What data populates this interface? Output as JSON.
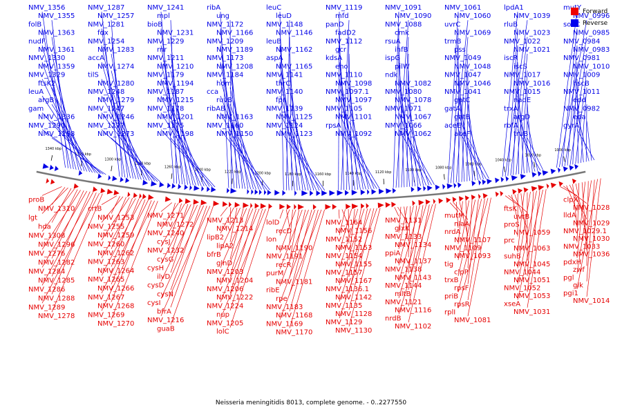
{
  "colors": {
    "forward": "#e60000",
    "reverse": "#0000e6",
    "backbone": "#7a7a7a",
    "tick": "#000000"
  },
  "legend": [
    {
      "label": "Forward",
      "color": "#ee0000"
    },
    {
      "label": "Reverse",
      "color": "#0000ee"
    }
  ],
  "caption": "Neisseria meningitidis 8013, complete genome. - 0..2277550",
  "scale": {
    "unit": "kbp",
    "ticks": [
      "1340 kbp",
      "1320 kbp",
      "1300 kbp",
      "1280 kbp",
      "1260 kbp",
      "1240 kbp",
      "1220 kbp",
      "1200 kbp",
      "1180 kbp",
      "1160 kbp",
      "1140 kbp",
      "1120 kbp",
      "1100 kbp",
      "1080 kbp",
      "1060 kbp",
      "1040 kbp",
      "1020 kbp",
      "1000 kbp"
    ]
  },
  "reverse_labels": [
    "NMV_1356",
    "NMV_1355",
    "folB",
    "NMV_1363",
    "nudF",
    "NMV_1361",
    "NMV_1330",
    "NMV_1359",
    "NMV_1329",
    "ftsK2",
    "leuA",
    "argB",
    "gam",
    "NMV_1336",
    "NMV_1290",
    "NMV_1258",
    "NMV_1287",
    "NMV_1257",
    "NMV_1281",
    "fdx",
    "NMV_1254",
    "NMV_1283",
    "accA",
    "NMV_1274",
    "tilS",
    "NMV_1280",
    "NMV_1248",
    "NMV_1279",
    "NMV_1247",
    "NMV_1246",
    "NMV_1277",
    "NMV_1273",
    "NMV_1241",
    "mpl",
    "bioB",
    "NMV_1231",
    "NMV_1229",
    "rnr",
    "NMV_1211",
    "NMV_1210",
    "NMV_1179",
    "NMV_1194",
    "NMV_1187",
    "NMV_1215",
    "NMV_1178",
    "NMV_1201",
    "NMV_1175",
    "NMV_1198",
    "ribA",
    "ung",
    "NMV_1172",
    "NMV_1166",
    "NMV_1209",
    "NMV_1189",
    "NMV_1173",
    "NMV_1208",
    "NMV_1184",
    "hom",
    "cca",
    "ruvB",
    "ribAB",
    "NMV_1163",
    "NMV_1160",
    "NMV_1150",
    "leuC",
    "leuD",
    "NMV_1148",
    "NMV_1146",
    "leuB",
    "NMV_1162",
    "aspA",
    "NMV_1165",
    "NMV_1141",
    "thrC",
    "NMV_1140",
    "fpr",
    "NMV_1139",
    "NMV_1125",
    "NMV_1124",
    "NMV_1123",
    "NMV_1119",
    "mfd",
    "panD",
    "fadD2",
    "NMV_1112",
    "gcr",
    "kdsA",
    "eno",
    "NMV_1110",
    "NMV_1098",
    "NMV_1097.1",
    "NMV_1097",
    "NMV_1105",
    "NMV_1101",
    "rpsA",
    "NMV_1092",
    "NMV_1091",
    "NMV_1090",
    "NMV_1088",
    "cmk",
    "rsuA",
    "ihfB",
    "ispG",
    "pilW",
    "ndk",
    "NMV_1082",
    "NMV_1080",
    "NMV_1078",
    "NMV_1071",
    "NMV_1067",
    "NMV_1066",
    "NMV_1062",
    "NMV_1061",
    "NMV_1060",
    "uvrC",
    "NMV_1069",
    "trmB",
    "pss",
    "NMV_1049",
    "NMV_1048",
    "NMV_1047",
    "NMV_1046",
    "NMV_1041",
    "gatC",
    "gatA",
    "gatB",
    "aceE",
    "aceF",
    "lpdA1",
    "NMV_1039",
    "rluB",
    "NMV_1023",
    "NMV_1022",
    "NMV_1021",
    "iscR",
    "iscS",
    "NMV_1017",
    "NMV_1016",
    "NMV_1015",
    "nadE",
    "trxA",
    "argD",
    "rbfA",
    "truB",
    "mutY",
    "NMV_0996",
    "sodC",
    "NMV_0985",
    "NMV_0984",
    "NMV_0983",
    "NMV_0981",
    "NMV_1010",
    "NMV_1009",
    "hscB",
    "NMV_1011",
    "edd",
    "NMV_0982",
    "eda",
    "gyrA"
  ],
  "forward_labels": [
    "proB",
    "NMV_1310",
    "lgt",
    "hda",
    "NMV_1308",
    "NMV_1296",
    "NMV_1276",
    "NMV_1282",
    "NMV_1284",
    "NMV_1285",
    "NMV_1286",
    "NMV_1288",
    "NMV_1289",
    "NMV_1278",
    "crtB",
    "NMV_1253",
    "NMV_1255",
    "NMV_1259",
    "NMV_1260",
    "NMV_1262",
    "NMV_1263",
    "NMV_1264",
    "NMV_1265",
    "NMV_1266",
    "NMV_1267",
    "NMV_1268",
    "NMV_1269",
    "NMV_1270",
    "NMV_1271",
    "NMV_1272",
    "NMV_1240",
    "cysJ",
    "NMV_1232",
    "cysG",
    "cysH",
    "ilvD",
    "cysD",
    "cysN",
    "cysI",
    "bfrA",
    "NMV_1216",
    "guaB",
    "NMV_1213",
    "NMV_1214",
    "lipB2",
    "lipA2",
    "bfrB",
    "glnD",
    "NMV_1203",
    "NMV_1204",
    "NMV_1206",
    "NMV_1222",
    "NMV_1224",
    "nup",
    "NMV_1205",
    "lolC",
    "lolD",
    "recD",
    "lon",
    "NMV_1190",
    "NMV_1191",
    "recR",
    "purM",
    "NMV_1181",
    "ribE",
    "rpe",
    "NMV_1183",
    "NMV_1168",
    "NMV_1169",
    "NMV_1170",
    "NMV_1164",
    "NMV_1156",
    "NMV_1152",
    "NMV_1153",
    "NMV_1154",
    "NMV_1155",
    "NMV_1157",
    "NMV_1167",
    "NMV_1136.1",
    "NMV_1142",
    "NMV_1135",
    "NMV_1128",
    "NMV_1129",
    "NMV_1130",
    "NMV_1131",
    "glxK",
    "NMV_1133",
    "NMV_1134",
    "ppiA",
    "NMV_1137",
    "NMV_1138",
    "NMV_1143",
    "NMV_1144",
    "mltB",
    "NMV_1121",
    "NMV_1116",
    "nrdB",
    "NMV_1102",
    "mutM",
    "nlaA",
    "nrdA",
    "NMV_1107",
    "NMV_1109",
    "NMV_1093",
    "tig",
    "clpP",
    "trxB",
    "rpsF",
    "priB",
    "rpsR",
    "rplI",
    "NMV_1081",
    "ftsK",
    "uvrB",
    "proS",
    "NMV_1059",
    "prc",
    "NMV_1063",
    "suhB",
    "NMV_1045",
    "NMV_1044",
    "NMV_1051",
    "NMV_1052",
    "NMV_1053",
    "xseA",
    "NMV_1031",
    "clpX",
    "NMV_1028",
    "lldA",
    "NMV_1029",
    "NMV_1029.1",
    "NMV_1030",
    "NMV_1033",
    "NMV_1036",
    "pdxH",
    "zwf",
    "pgl",
    "glk",
    "pgi1",
    "NMV_1014"
  ]
}
